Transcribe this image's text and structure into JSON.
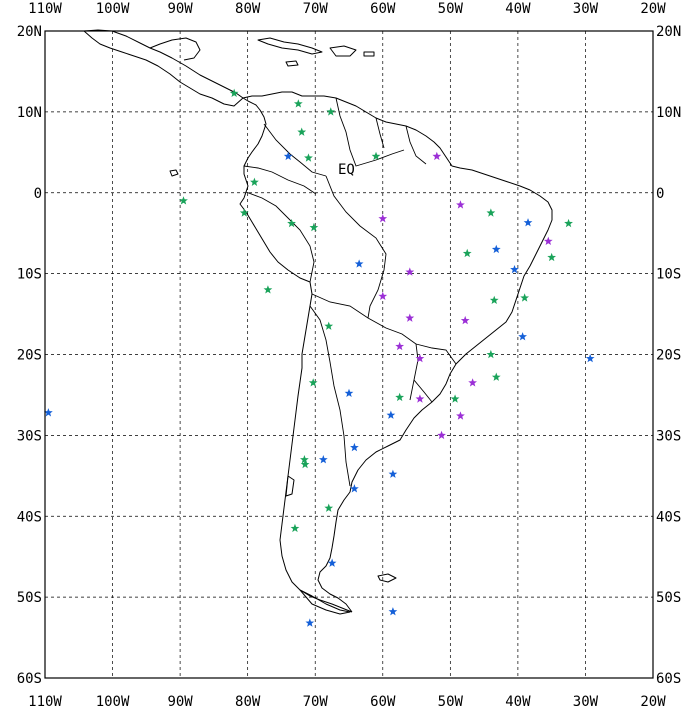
{
  "map": {
    "lon_range": [
      -110,
      -20
    ],
    "lat_range": [
      -60,
      20
    ],
    "lon_ticks": [
      {
        "lon": -110,
        "label": "110W"
      },
      {
        "lon": -100,
        "label": "100W"
      },
      {
        "lon": -90,
        "label": "90W"
      },
      {
        "lon": -80,
        "label": "80W"
      },
      {
        "lon": -70,
        "label": "70W"
      },
      {
        "lon": -60,
        "label": "60W"
      },
      {
        "lon": -50,
        "label": "50W"
      },
      {
        "lon": -40,
        "label": "40W"
      },
      {
        "lon": -30,
        "label": "30W"
      },
      {
        "lon": -20,
        "label": "20W"
      }
    ],
    "lat_ticks": [
      {
        "lat": 20,
        "label": "20N"
      },
      {
        "lat": 10,
        "label": "10N"
      },
      {
        "lat": 0,
        "label": "0"
      },
      {
        "lat": -10,
        "label": "10S"
      },
      {
        "lat": -20,
        "label": "20S"
      },
      {
        "lat": -30,
        "label": "30S"
      },
      {
        "lat": -40,
        "label": "40S"
      },
      {
        "lat": -50,
        "label": "50S"
      },
      {
        "lat": -60,
        "label": "60S"
      }
    ],
    "equator_label": "EQ",
    "grid": "dashed",
    "colors": {
      "blue": "#1560d8",
      "green": "#1aa35a",
      "purple": "#9b2fd6"
    },
    "stations": [
      {
        "lon": -82.0,
        "lat": 12.3,
        "color": "green"
      },
      {
        "lon": -72.5,
        "lat": 11.0,
        "color": "green"
      },
      {
        "lon": -67.7,
        "lat": 10.0,
        "color": "green"
      },
      {
        "lon": -72.0,
        "lat": 7.5,
        "color": "green"
      },
      {
        "lon": -74.0,
        "lat": 4.5,
        "color": "blue"
      },
      {
        "lon": -71.0,
        "lat": 4.3,
        "color": "green"
      },
      {
        "lon": -61.0,
        "lat": 4.5,
        "color": "green"
      },
      {
        "lon": -52.0,
        "lat": 4.5,
        "color": "purple"
      },
      {
        "lon": -79.0,
        "lat": 1.3,
        "color": "green"
      },
      {
        "lon": -89.5,
        "lat": -1.0,
        "color": "green"
      },
      {
        "lon": -48.5,
        "lat": -1.5,
        "color": "purple"
      },
      {
        "lon": -80.5,
        "lat": -2.5,
        "color": "green"
      },
      {
        "lon": -60.0,
        "lat": -3.2,
        "color": "purple"
      },
      {
        "lon": -44.0,
        "lat": -2.5,
        "color": "green"
      },
      {
        "lon": -73.5,
        "lat": -3.8,
        "color": "green"
      },
      {
        "lon": -70.2,
        "lat": -4.3,
        "color": "green"
      },
      {
        "lon": -38.5,
        "lat": -3.7,
        "color": "blue"
      },
      {
        "lon": -32.5,
        "lat": -3.8,
        "color": "green"
      },
      {
        "lon": -35.5,
        "lat": -6.0,
        "color": "purple"
      },
      {
        "lon": -43.2,
        "lat": -7.0,
        "color": "blue"
      },
      {
        "lon": -47.5,
        "lat": -7.5,
        "color": "green"
      },
      {
        "lon": -35.0,
        "lat": -8.0,
        "color": "green"
      },
      {
        "lon": -63.5,
        "lat": -8.8,
        "color": "blue"
      },
      {
        "lon": -40.5,
        "lat": -9.5,
        "color": "blue"
      },
      {
        "lon": -56.0,
        "lat": -9.8,
        "color": "purple"
      },
      {
        "lon": -77.0,
        "lat": -12.0,
        "color": "green"
      },
      {
        "lon": -60.0,
        "lat": -12.8,
        "color": "purple"
      },
      {
        "lon": -39.0,
        "lat": -13.0,
        "color": "green"
      },
      {
        "lon": -43.5,
        "lat": -13.3,
        "color": "green"
      },
      {
        "lon": -56.0,
        "lat": -15.5,
        "color": "purple"
      },
      {
        "lon": -47.8,
        "lat": -15.8,
        "color": "purple"
      },
      {
        "lon": -68.0,
        "lat": -16.5,
        "color": "green"
      },
      {
        "lon": -39.3,
        "lat": -17.8,
        "color": "blue"
      },
      {
        "lon": -57.5,
        "lat": -19.0,
        "color": "purple"
      },
      {
        "lon": -44.0,
        "lat": -20.0,
        "color": "green"
      },
      {
        "lon": -54.5,
        "lat": -20.5,
        "color": "purple"
      },
      {
        "lon": -29.3,
        "lat": -20.5,
        "color": "blue"
      },
      {
        "lon": -43.2,
        "lat": -22.8,
        "color": "green"
      },
      {
        "lon": -70.3,
        "lat": -23.5,
        "color": "green"
      },
      {
        "lon": -46.7,
        "lat": -23.5,
        "color": "purple"
      },
      {
        "lon": -65.0,
        "lat": -24.8,
        "color": "blue"
      },
      {
        "lon": -57.5,
        "lat": -25.3,
        "color": "green"
      },
      {
        "lon": -54.5,
        "lat": -25.5,
        "color": "purple"
      },
      {
        "lon": -49.3,
        "lat": -25.5,
        "color": "green"
      },
      {
        "lon": -109.5,
        "lat": -27.2,
        "color": "blue"
      },
      {
        "lon": -58.8,
        "lat": -27.5,
        "color": "blue"
      },
      {
        "lon": -48.5,
        "lat": -27.6,
        "color": "purple"
      },
      {
        "lon": -51.3,
        "lat": -30.0,
        "color": "purple"
      },
      {
        "lon": -64.2,
        "lat": -31.5,
        "color": "blue"
      },
      {
        "lon": -71.6,
        "lat": -33.0,
        "color": "green"
      },
      {
        "lon": -68.8,
        "lat": -33.0,
        "color": "blue"
      },
      {
        "lon": -71.5,
        "lat": -33.6,
        "color": "green"
      },
      {
        "lon": -58.5,
        "lat": -34.8,
        "color": "blue"
      },
      {
        "lon": -64.2,
        "lat": -36.6,
        "color": "blue"
      },
      {
        "lon": -68.0,
        "lat": -39.0,
        "color": "green"
      },
      {
        "lon": -73.0,
        "lat": -41.5,
        "color": "green"
      },
      {
        "lon": -67.5,
        "lat": -45.8,
        "color": "blue"
      },
      {
        "lon": -58.5,
        "lat": -51.8,
        "color": "blue"
      },
      {
        "lon": -70.8,
        "lat": -53.2,
        "color": "blue"
      }
    ]
  }
}
